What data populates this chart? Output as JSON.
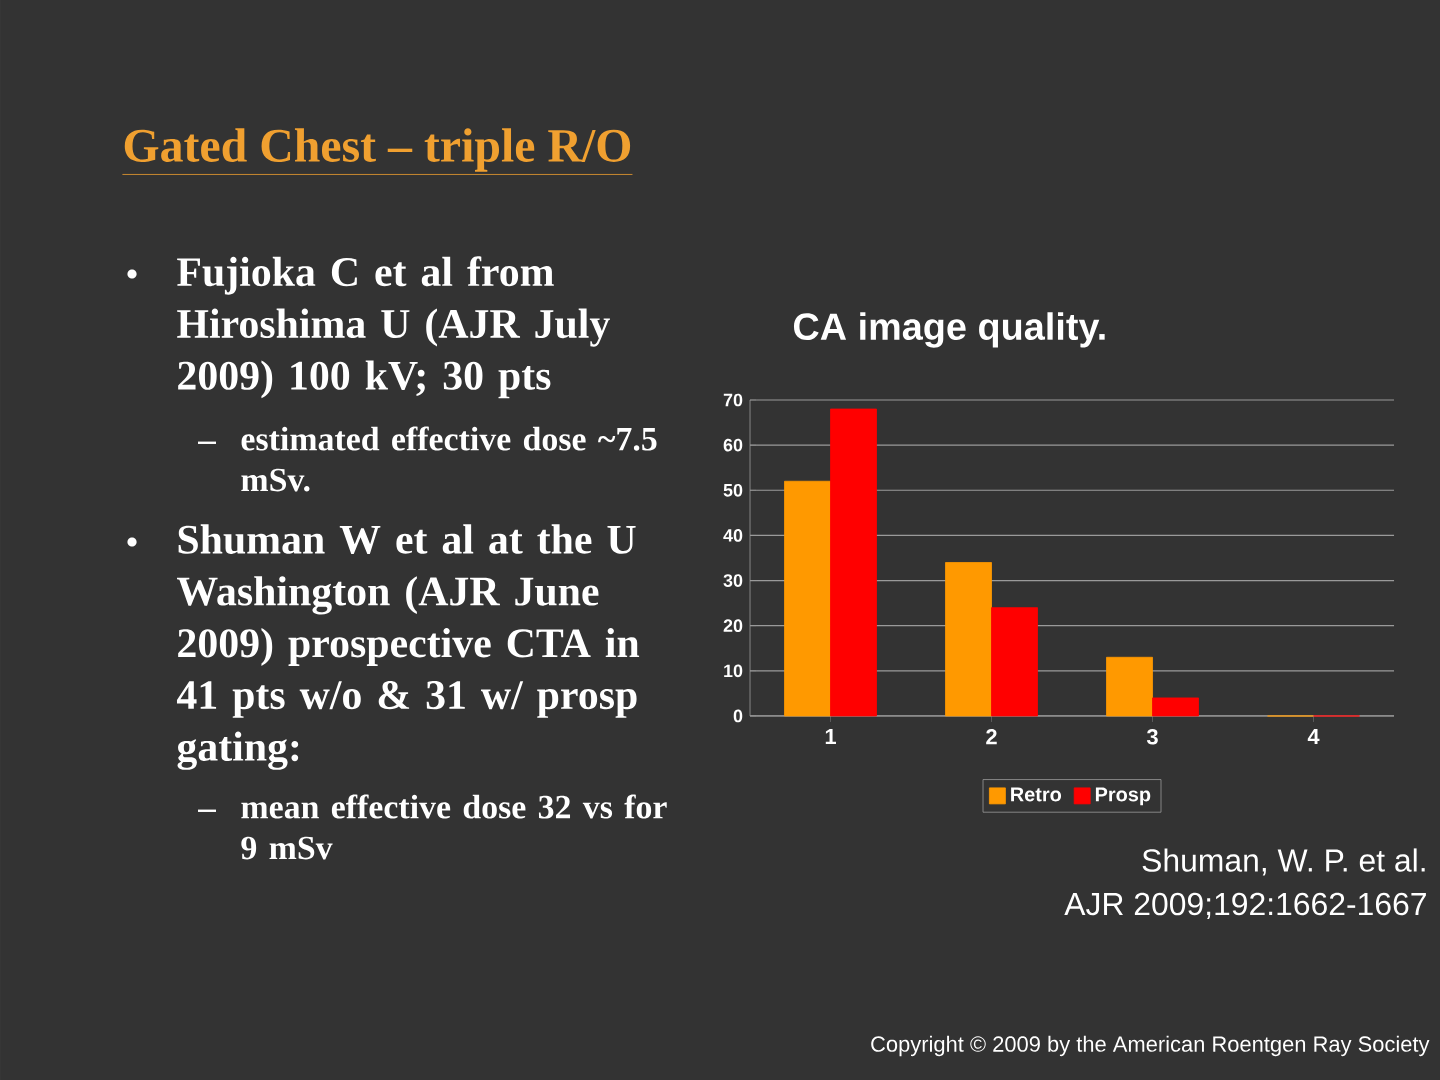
{
  "chart_data": {
    "type": "bar",
    "title": "CA image quality.",
    "categories": [
      "1",
      "2",
      "3",
      "4"
    ],
    "series": [
      {
        "name": "Retro",
        "color": "#ff9900",
        "values": [
          52,
          34,
          13,
          0
        ]
      },
      {
        "name": "Prosp",
        "color": "#ff0000",
        "values": [
          68,
          24,
          4,
          0
        ]
      }
    ],
    "ylim": [
      0,
      70
    ],
    "yticks": [
      0,
      10,
      20,
      30,
      40,
      50,
      60,
      70
    ],
    "grid": "y",
    "legend": "bottom",
    "annotations": [
      "Gated Chest – triple R/O",
      "Fujioka C et al from Hiroshima U (AJR July 2009) 100 kV; 30 pts",
      "estimated effective dose ~7.5 mSv.",
      "Shuman W et al at the U Washington (AJR June 2009) prospective CTA in 41 pts w/o & 31 w/ prosp gating:",
      "mean effective dose 32 vs for 9 mSv",
      "Shuman, W. P. et al.",
      "AJR 2009;192:1662-1667",
      "Copyright © 2009 by the American Roentgen Ray Society"
    ]
  }
}
